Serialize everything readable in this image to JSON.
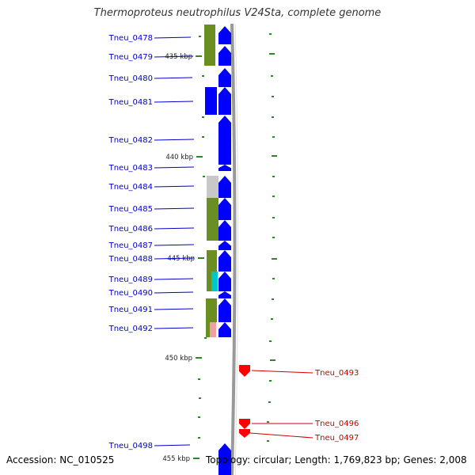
{
  "title": "Thermoproteus neutrophilus V24Sta, complete genome",
  "footer": {
    "accession": "Accession: NC_010525",
    "summary": "Topology: circular; Length: 1,769,823 bp; Genes: 2,008"
  },
  "colors": {
    "forward_gene": "#0000ff",
    "reverse_gene": "#ff0000",
    "forward_label": "#0000cc",
    "reverse_label": "#cc0000",
    "cog_olive": "#6b8e23",
    "cog_gray": "#c8c8c8",
    "cog_cyan": "#00c8c8",
    "cog_pink": "#f0a0a0",
    "tick": "#2a8a2a",
    "backbone": "#999999"
  },
  "scale_labels": [
    "435 kbp",
    "440 kbp",
    "445 kbp",
    "450 kbp",
    "455 kbp"
  ],
  "forward_genes": [
    "Tneu_0478",
    "Tneu_0479",
    "Tneu_0480",
    "Tneu_0481",
    "Tneu_0482",
    "Tneu_0483",
    "Tneu_0484",
    "Tneu_0485",
    "Tneu_0486",
    "Tneu_0487",
    "Tneu_0488",
    "Tneu_0489",
    "Tneu_0490",
    "Tneu_0491",
    "Tneu_0492",
    "Tneu_0498"
  ],
  "reverse_genes": [
    "Tneu_0493",
    "Tneu_0496",
    "Tneu_0497"
  ]
}
